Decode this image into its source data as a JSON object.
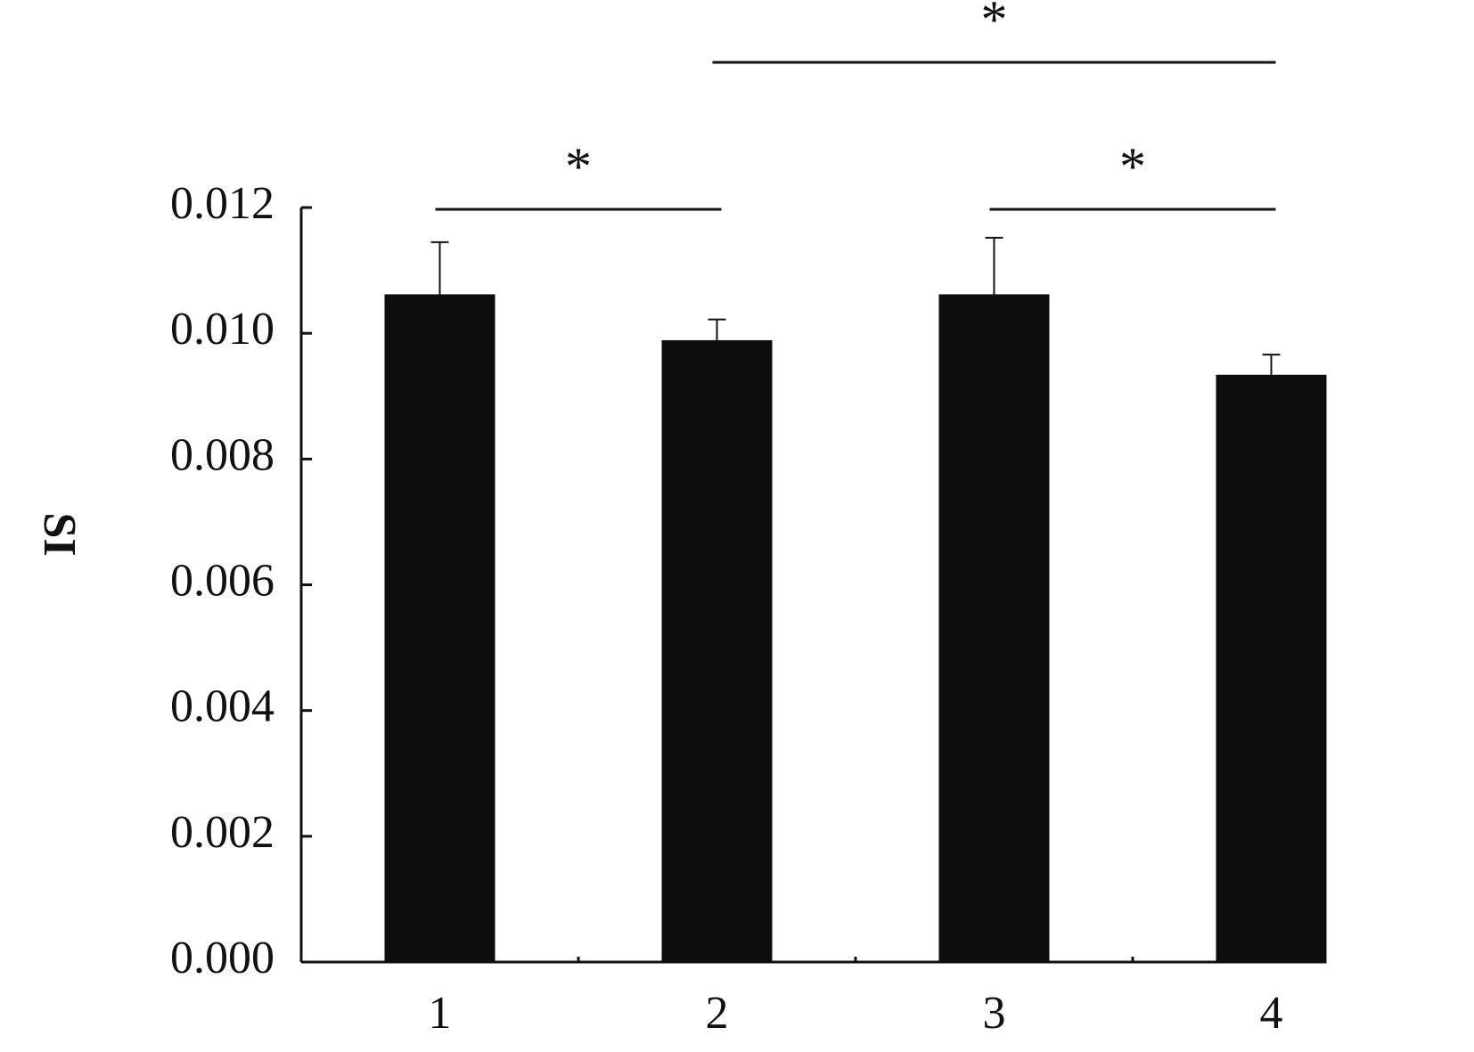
{
  "chart_data": {
    "type": "bar",
    "y_label": "SI",
    "categories": [
      "1",
      "2",
      "3",
      "4"
    ],
    "values": [
      0.01062,
      0.00989,
      0.01062,
      0.00934
    ],
    "errors": [
      0.00083,
      0.00033,
      0.0009,
      0.00032
    ],
    "color": "#0d0d0d",
    "ylim": [
      0,
      0.012
    ],
    "yticks": [
      {
        "value": 0,
        "label": "0.000"
      },
      0.002,
      0.004,
      0.006,
      0.008,
      {
        "value": 0.01,
        "label": "0.010"
      },
      0.012
    ],
    "significance": [
      {
        "between": [
          0,
          1
        ],
        "label": "*"
      },
      {
        "between": [
          2,
          3
        ],
        "label": "*"
      },
      {
        "between": [
          1,
          3
        ],
        "label": "*"
      }
    ]
  }
}
